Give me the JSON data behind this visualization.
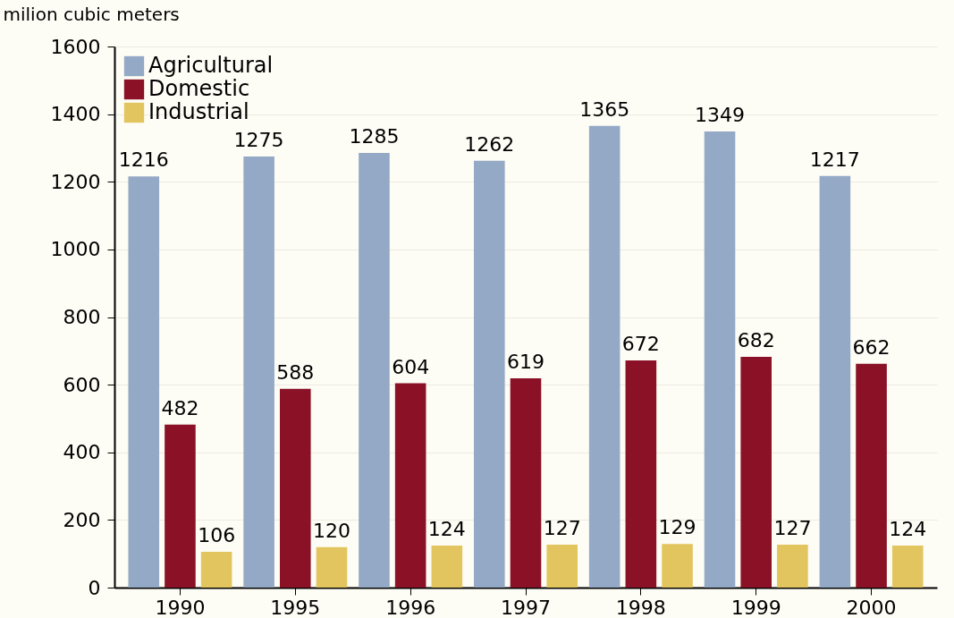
{
  "chart_data": {
    "type": "bar",
    "ylabel": "milion cubic meters",
    "categories": [
      "1990",
      "1995",
      "1996",
      "1997",
      "1998",
      "1999",
      "2000"
    ],
    "series": [
      {
        "name": "Agricultural",
        "color": "#94a9c6",
        "values": [
          1216,
          1275,
          1285,
          1262,
          1365,
          1349,
          1217
        ]
      },
      {
        "name": "Domestic",
        "color": "#8b1226",
        "values": [
          482,
          588,
          604,
          619,
          672,
          682,
          662
        ]
      },
      {
        "name": "Industrial",
        "color": "#e3c55f",
        "values": [
          106,
          120,
          124,
          127,
          129,
          127,
          124
        ]
      }
    ],
    "ylim": [
      0,
      1600
    ],
    "yticks": [
      0,
      200,
      400,
      600,
      800,
      1000,
      1200,
      1400,
      1600
    ],
    "data_labels": true,
    "grid": "y",
    "legend": "top left"
  }
}
